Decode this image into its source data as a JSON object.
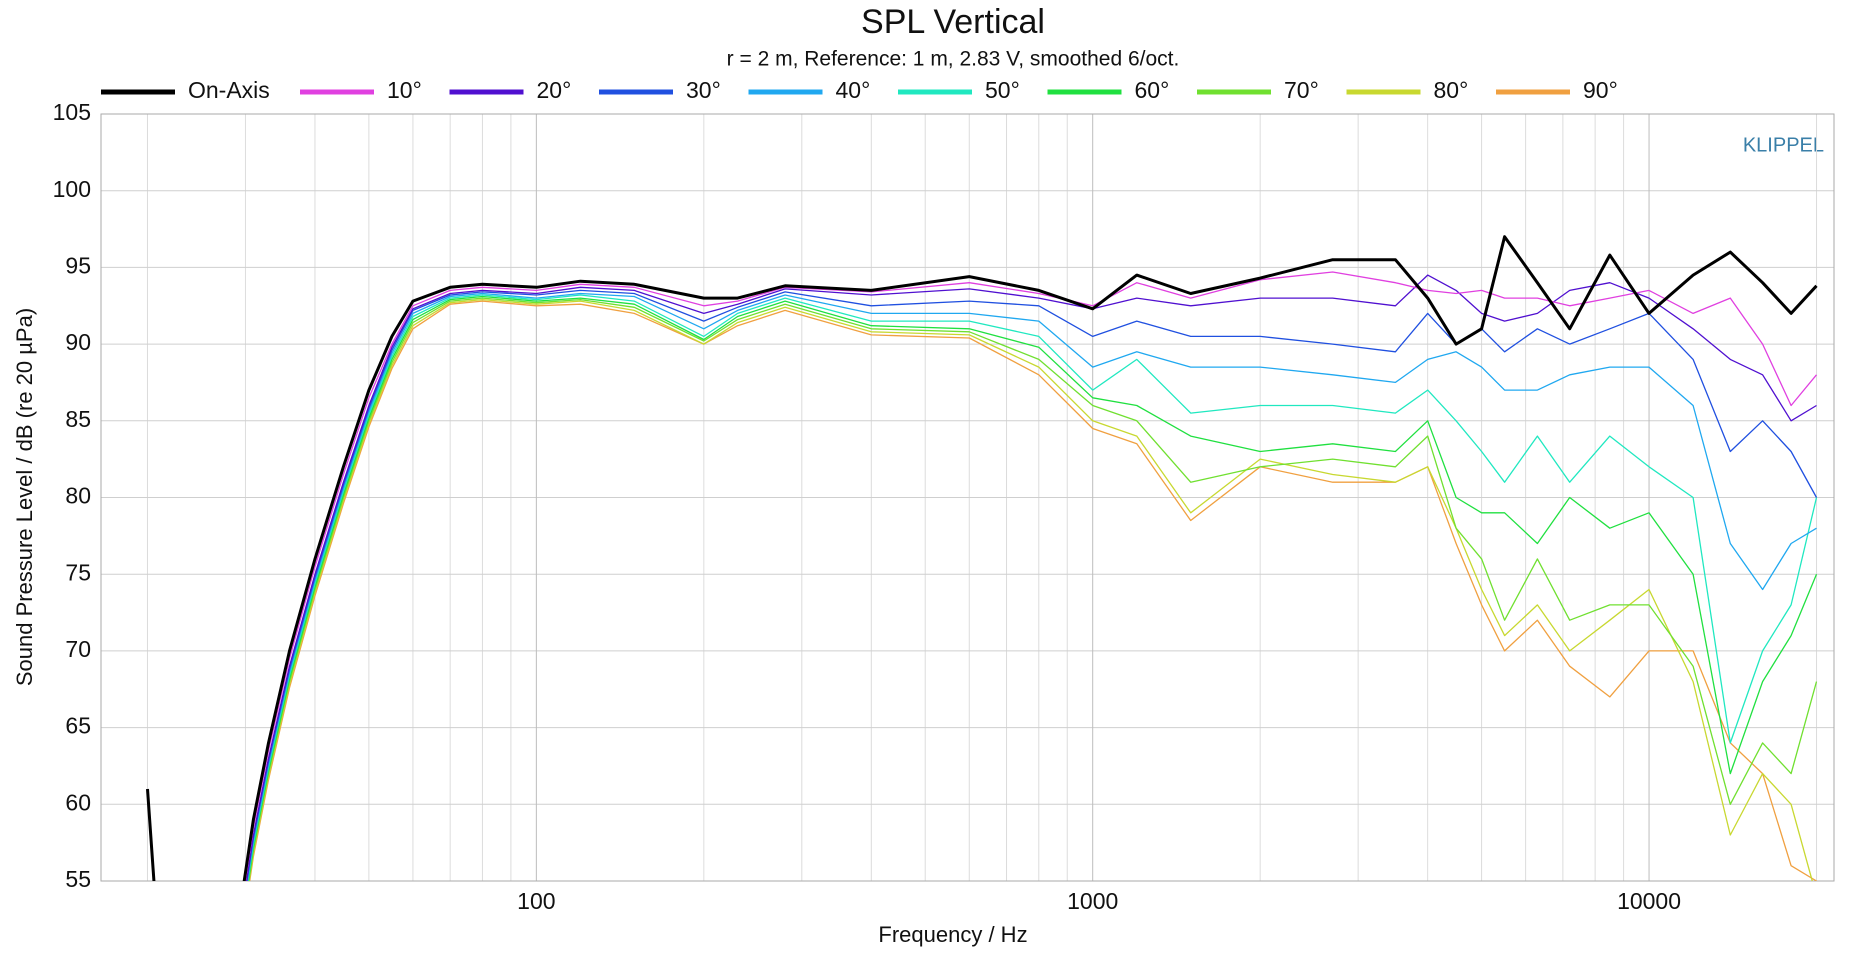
{
  "chart_data": {
    "type": "line",
    "title": "SPL Vertical",
    "subtitle": "r = 2 m,  Reference: 1 m, 2.83 V, smoothed 6/oct.",
    "x_label": "Frequency / Hz",
    "y_label": "Sound Pressure Level / dB (re 20 µPa)",
    "annotation": "KLIPPEL",
    "log_x": true,
    "grid": true,
    "legend": "top",
    "xlim": [
      16.5,
      21500
    ],
    "ylim": [
      55,
      105
    ],
    "xticks": [
      100,
      1000,
      10000
    ],
    "xgrid_minor": [
      20,
      30,
      40,
      50,
      60,
      70,
      80,
      90,
      200,
      300,
      400,
      500,
      600,
      700,
      800,
      900,
      2000,
      3000,
      4000,
      5000,
      6000,
      7000,
      8000,
      9000,
      20000
    ],
    "yticks": [
      55,
      60,
      65,
      70,
      75,
      80,
      85,
      90,
      95,
      100,
      105
    ],
    "x": [
      20,
      21,
      29,
      31,
      33,
      36,
      40,
      45,
      50,
      55,
      60,
      70,
      80,
      100,
      120,
      150,
      200,
      230,
      280,
      400,
      600,
      800,
      1000,
      1200,
      1500,
      2000,
      2700,
      3500,
      4000,
      4500,
      5000,
      5500,
      6300,
      7200,
      8500,
      10000,
      12000,
      14000,
      16000,
      18000,
      20000
    ],
    "series": [
      {
        "name": "On-Axis",
        "color": "#000000",
        "width": 3,
        "values": [
          61,
          50,
          52,
          59,
          64,
          70,
          76,
          82,
          87,
          90.5,
          92.8,
          93.7,
          93.9,
          93.7,
          94.1,
          93.9,
          93,
          93,
          93.8,
          93.5,
          94.4,
          93.5,
          92.3,
          94.5,
          93.3,
          94.3,
          95.5,
          95.5,
          93,
          90,
          91,
          97,
          94,
          91,
          95.8,
          92,
          94.5,
          96,
          94,
          92,
          93.8
        ]
      },
      {
        "name": "10°",
        "color": "#e040e0",
        "width": 1.3,
        "values": [
          61,
          50,
          51.5,
          58.5,
          63.5,
          69.5,
          75.5,
          81.5,
          86.5,
          90,
          92.5,
          93.5,
          93.7,
          93.5,
          93.9,
          93.7,
          92.5,
          92.8,
          93.7,
          93.4,
          94,
          93.3,
          92.5,
          94,
          93,
          94.2,
          94.7,
          94,
          93.5,
          93.3,
          93.5,
          93,
          93,
          92.5,
          93,
          93.5,
          92,
          93,
          90,
          86,
          88
        ]
      },
      {
        "name": "20°",
        "color": "#5010d0",
        "width": 1.3,
        "values": [
          61,
          50,
          51,
          58,
          63,
          69,
          75,
          81,
          86,
          89.8,
          92.3,
          93.3,
          93.5,
          93.3,
          93.7,
          93.5,
          92,
          92.6,
          93.6,
          93.2,
          93.6,
          93,
          92.3,
          93,
          92.5,
          93,
          93,
          92.5,
          94.5,
          93.5,
          92,
          91.5,
          92,
          93.5,
          94,
          93,
          91,
          89,
          88,
          85,
          86
        ]
      },
      {
        "name": "30°",
        "color": "#2050e0",
        "width": 1.3,
        "values": [
          61,
          50,
          50.8,
          57.8,
          62.8,
          68.8,
          74.8,
          80.8,
          85.8,
          89.6,
          92.2,
          93.2,
          93.4,
          93.2,
          93.5,
          93.3,
          91.5,
          92.4,
          93.4,
          92.5,
          92.8,
          92.5,
          90.5,
          91.5,
          90.5,
          90.5,
          90,
          89.5,
          92,
          90,
          91,
          89.5,
          91,
          90,
          91,
          92,
          89,
          83,
          85,
          83,
          80
        ]
      },
      {
        "name": "40°",
        "color": "#20a8f0",
        "width": 1.3,
        "values": [
          61,
          50,
          50.6,
          57.6,
          62.6,
          68.6,
          74.6,
          80.6,
          85.6,
          89.4,
          92,
          93.1,
          93.3,
          93,
          93.3,
          93.1,
          91,
          92.2,
          93.2,
          92,
          92,
          91.5,
          88.5,
          89.5,
          88.5,
          88.5,
          88,
          87.5,
          89,
          89.5,
          88.5,
          87,
          87,
          88,
          88.5,
          88.5,
          86,
          77,
          74,
          77,
          78
        ]
      },
      {
        "name": "50°",
        "color": "#20e8c0",
        "width": 1.3,
        "values": [
          61,
          50,
          50.4,
          57.4,
          62.4,
          68.4,
          74.4,
          80.4,
          85.4,
          89.2,
          91.8,
          93,
          93.2,
          92.9,
          93.2,
          92.8,
          90.5,
          92,
          93,
          91.5,
          91.5,
          90.5,
          87,
          89,
          85.5,
          86,
          86,
          85.5,
          87,
          85,
          83,
          81,
          84,
          81,
          84,
          82,
          80,
          64,
          70,
          73,
          80
        ]
      },
      {
        "name": "60°",
        "color": "#20e040",
        "width": 1.3,
        "values": [
          61,
          50,
          50.2,
          57.2,
          62.2,
          68.2,
          74.2,
          80.2,
          85.2,
          89,
          91.6,
          92.9,
          93.1,
          92.8,
          93,
          92.6,
          90.3,
          91.8,
          92.8,
          91.2,
          91,
          89.8,
          86.5,
          86,
          84,
          83,
          83.5,
          83,
          85,
          80,
          79,
          79,
          77,
          80,
          78,
          79,
          75,
          62,
          68,
          71,
          75
        ]
      },
      {
        "name": "70°",
        "color": "#70e030",
        "width": 1.3,
        "values": [
          61,
          50,
          50,
          57,
          62,
          68,
          74,
          80,
          85,
          88.8,
          91.4,
          92.8,
          93,
          92.7,
          92.9,
          92.4,
          90.2,
          91.6,
          92.6,
          91,
          90.8,
          89,
          86,
          85,
          81,
          82,
          82.5,
          82,
          84,
          78,
          76,
          72,
          76,
          72,
          73,
          73,
          69,
          60,
          64,
          62,
          68
        ]
      },
      {
        "name": "80°",
        "color": "#c8d830",
        "width": 1.3,
        "values": [
          61,
          50,
          49.8,
          56.8,
          61.8,
          67.8,
          73.8,
          79.8,
          84.8,
          88.6,
          91.2,
          92.7,
          92.9,
          92.6,
          92.8,
          92.2,
          90,
          91.4,
          92.4,
          90.8,
          90.6,
          88.5,
          85,
          84,
          79,
          82.5,
          81.5,
          81,
          82,
          78,
          74,
          71,
          73,
          70,
          72,
          74,
          68,
          58,
          62,
          60,
          54
        ]
      },
      {
        "name": "90°",
        "color": "#f0a040",
        "width": 1.3,
        "values": [
          61,
          50,
          49.6,
          56.6,
          61.6,
          67.6,
          73.6,
          79.6,
          84.6,
          88.4,
          91,
          92.6,
          92.8,
          92.5,
          92.6,
          92,
          90,
          91.2,
          92.2,
          90.6,
          90.4,
          88,
          84.5,
          83.5,
          78.5,
          82,
          81,
          81,
          82,
          77,
          73,
          70,
          72,
          69,
          67,
          70,
          70,
          64,
          62,
          56,
          55
        ]
      }
    ]
  }
}
